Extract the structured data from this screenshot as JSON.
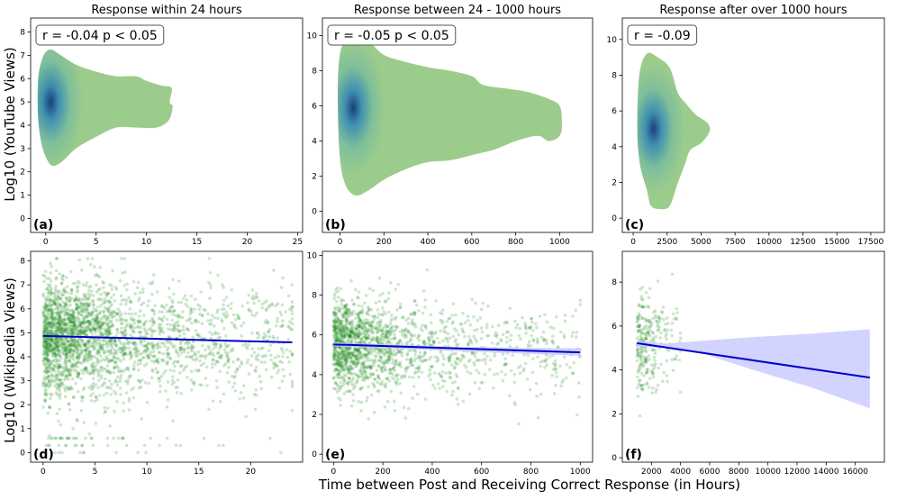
{
  "figure": {
    "ylabel_top": "Log10 (YouTube Views)",
    "ylabel_bottom": "Log10 (Wikipedia Views)",
    "xlabel": "Time between Post and Receiving Correct Response (in Hours)"
  },
  "colors": {
    "kde_outer": "#9ccc8c",
    "kde_mid": "#3f8fb0",
    "kde_core": "#1a3f7a",
    "scatter": "#1f8f1f",
    "fit_line": "#0000cc",
    "ci_band": "#c8c8ff"
  },
  "chart_data": [
    {
      "id": "a",
      "type": "kde",
      "panel_label": "(a)",
      "title": "Response within 24 hours",
      "annotation": "r = -0.04  p < 0.05",
      "xlim": [
        -1.5,
        25.5
      ],
      "ylim": [
        -0.6,
        8.6
      ],
      "xticks": [
        0,
        5,
        10,
        15,
        20,
        25
      ],
      "yticks": [
        0,
        1,
        2,
        3,
        4,
        5,
        6,
        7,
        8
      ],
      "mode": [
        0.5,
        5.0
      ],
      "contour": [
        [
          -0.8,
          5.0
        ],
        [
          -0.7,
          6.2
        ],
        [
          -0.2,
          7.0
        ],
        [
          0.5,
          7.25
        ],
        [
          1.5,
          7.0
        ],
        [
          3,
          6.6
        ],
        [
          5,
          6.3
        ],
        [
          7,
          6.1
        ],
        [
          9,
          6.1
        ],
        [
          10,
          5.9
        ],
        [
          11.5,
          5.7
        ],
        [
          12.5,
          5.6
        ],
        [
          12.3,
          5.0
        ],
        [
          12.6,
          4.8
        ],
        [
          12.2,
          4.2
        ],
        [
          11,
          3.9
        ],
        [
          9,
          3.9
        ],
        [
          7,
          3.9
        ],
        [
          5,
          3.5
        ],
        [
          3,
          3.0
        ],
        [
          1.5,
          2.4
        ],
        [
          0.5,
          2.3
        ],
        [
          -0.3,
          3.0
        ],
        [
          -0.7,
          4.0
        ]
      ]
    },
    {
      "id": "b",
      "type": "kde",
      "panel_label": "(b)",
      "title": "Response between 24 - 1000 hours",
      "annotation": "r = -0.05  p < 0.05",
      "xlim": [
        -80,
        1150
      ],
      "ylim": [
        -1.2,
        11
      ],
      "xticks": [
        0,
        200,
        400,
        600,
        800,
        1000
      ],
      "yticks": [
        0,
        2,
        4,
        6,
        8,
        10
      ],
      "mode": [
        60,
        5.9
      ],
      "contour": [
        [
          -10,
          6
        ],
        [
          -5,
          8.5
        ],
        [
          20,
          9.7
        ],
        [
          70,
          10.1
        ],
        [
          130,
          9.7
        ],
        [
          200,
          8.9
        ],
        [
          300,
          8.5
        ],
        [
          400,
          8.2
        ],
        [
          500,
          8.0
        ],
        [
          600,
          7.7
        ],
        [
          650,
          7.2
        ],
        [
          750,
          7.0
        ],
        [
          850,
          6.8
        ],
        [
          950,
          6.4
        ],
        [
          1000,
          6.0
        ],
        [
          1010,
          5.0
        ],
        [
          1000,
          4.3
        ],
        [
          950,
          4.0
        ],
        [
          900,
          4.3
        ],
        [
          800,
          4.0
        ],
        [
          700,
          3.5
        ],
        [
          600,
          3.2
        ],
        [
          500,
          2.9
        ],
        [
          400,
          2.8
        ],
        [
          300,
          2.4
        ],
        [
          200,
          1.8
        ],
        [
          130,
          1.2
        ],
        [
          70,
          0.9
        ],
        [
          25,
          1.5
        ],
        [
          0,
          3
        ]
      ]
    },
    {
      "id": "c",
      "type": "kde",
      "panel_label": "(c)",
      "title": "Response after over 1000 hours",
      "annotation": "r = -0.09",
      "xlim": [
        -800,
        18500
      ],
      "ylim": [
        -0.8,
        11.2
      ],
      "xticks": [
        0,
        2500,
        5000,
        7500,
        10000,
        12500,
        15000,
        17500
      ],
      "yticks": [
        0,
        2,
        4,
        6,
        8,
        10
      ],
      "mode": [
        1500,
        5.0
      ],
      "contour": [
        [
          300,
          5
        ],
        [
          450,
          8
        ],
        [
          1000,
          9.2
        ],
        [
          1800,
          9.0
        ],
        [
          2700,
          8.4
        ],
        [
          3300,
          7.0
        ],
        [
          3900,
          6.4
        ],
        [
          4600,
          5.8
        ],
        [
          5500,
          5.3
        ],
        [
          5600,
          4.8
        ],
        [
          5000,
          4.2
        ],
        [
          4200,
          3.8
        ],
        [
          3800,
          3.0
        ],
        [
          3300,
          2.0
        ],
        [
          2700,
          0.7
        ],
        [
          2000,
          0.5
        ],
        [
          1300,
          0.7
        ],
        [
          1000,
          1.6
        ],
        [
          500,
          3
        ]
      ]
    },
    {
      "id": "d",
      "type": "scatter_fit",
      "panel_label": "(d)",
      "xlim": [
        -1.2,
        25.0
      ],
      "ylim": [
        -0.4,
        8.4
      ],
      "xticks": [
        0,
        5,
        10,
        15,
        20
      ],
      "yticks": [
        0,
        1,
        2,
        3,
        4,
        5,
        6,
        7,
        8
      ],
      "x_range": [
        0,
        24
      ],
      "point_count": 2600,
      "decay": 5,
      "fit": {
        "x": [
          0,
          24
        ],
        "y": [
          4.87,
          4.6
        ]
      }
    },
    {
      "id": "e",
      "type": "scatter_fit",
      "panel_label": "(e)",
      "xlim": [
        -45,
        1050
      ],
      "ylim": [
        -0.4,
        10.2
      ],
      "xticks": [
        0,
        200,
        400,
        600,
        800,
        1000
      ],
      "yticks": [
        0,
        2,
        4,
        6,
        8,
        10
      ],
      "x_range": [
        0,
        1000
      ],
      "point_count": 1700,
      "decay": 170,
      "fit": {
        "x": [
          0,
          1000
        ],
        "y": [
          5.52,
          5.12
        ]
      },
      "ci": {
        "x": [
          0,
          500,
          1000
        ],
        "upper": [
          5.62,
          5.4,
          5.32
        ],
        "lower": [
          5.42,
          5.18,
          4.95
        ]
      }
    },
    {
      "id": "f",
      "type": "scatter_fit",
      "panel_label": "(f)",
      "xlim": [
        0,
        18000
      ],
      "ylim": [
        -0.2,
        9.4
      ],
      "xticks": [
        2000,
        4000,
        6000,
        8000,
        10000,
        12000,
        14000,
        16000
      ],
      "yticks": [
        0,
        2,
        4,
        6,
        8
      ],
      "x_range": [
        1000,
        4000
      ],
      "point_count": 260,
      "decay": 900,
      "fit": {
        "x": [
          1000,
          17000
        ],
        "y": [
          5.22,
          3.65
        ]
      },
      "ci": {
        "x": [
          1000,
          3000,
          5000,
          9000,
          13000,
          17000
        ],
        "upper": [
          5.35,
          5.2,
          5.3,
          5.5,
          5.65,
          5.85
        ],
        "lower": [
          5.05,
          5.0,
          4.85,
          4.0,
          3.2,
          2.25
        ]
      }
    }
  ]
}
